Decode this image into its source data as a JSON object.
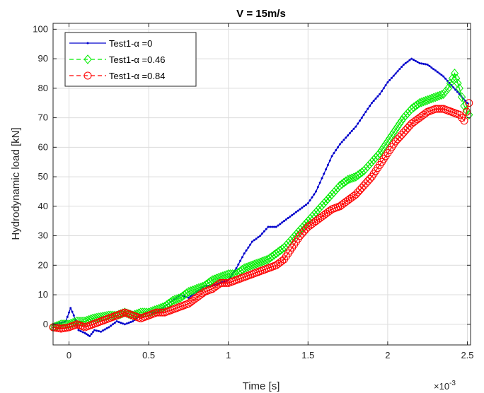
{
  "chart_data": {
    "type": "line",
    "title": "V = 15m/s",
    "xlabel": "Time [s]",
    "ylabel": "Hydrodynamic load [kN]",
    "x_exponent_label": "×10",
    "x_exponent_power": "-3",
    "xlim": [
      -0.1,
      2.52
    ],
    "ylim": [
      -7,
      102
    ],
    "xticks": [
      0,
      0.5,
      1,
      1.5,
      2,
      2.5
    ],
    "xtick_labels": [
      "0",
      "0.5",
      "1",
      "1.5",
      "2",
      "2.5"
    ],
    "yticks": [
      0,
      10,
      20,
      30,
      40,
      50,
      60,
      70,
      80,
      90,
      100
    ],
    "ytick_labels": [
      "0",
      "10",
      "20",
      "30",
      "40",
      "50",
      "60",
      "70",
      "80",
      "90",
      "100"
    ],
    "grid": true,
    "legend_position": "top-left",
    "series": [
      {
        "name": "Test1-α =0",
        "color": "#0000cc",
        "marker": "dot",
        "points": [
          [
            -0.1,
            0
          ],
          [
            -0.05,
            0.5
          ],
          [
            -0.02,
            1
          ],
          [
            0.01,
            5.5
          ],
          [
            0.03,
            3
          ],
          [
            0.06,
            -2
          ],
          [
            0.1,
            -3
          ],
          [
            0.13,
            -4
          ],
          [
            0.16,
            -2
          ],
          [
            0.2,
            -2.5
          ],
          [
            0.25,
            -1
          ],
          [
            0.3,
            1
          ],
          [
            0.35,
            0
          ],
          [
            0.4,
            1
          ],
          [
            0.45,
            3
          ],
          [
            0.5,
            4
          ],
          [
            0.55,
            4
          ],
          [
            0.6,
            6
          ],
          [
            0.65,
            8
          ],
          [
            0.7,
            10
          ],
          [
            0.75,
            9
          ],
          [
            0.8,
            11
          ],
          [
            0.85,
            13
          ],
          [
            0.9,
            13
          ],
          [
            0.95,
            14
          ],
          [
            1.0,
            15
          ],
          [
            1.05,
            19
          ],
          [
            1.1,
            24
          ],
          [
            1.15,
            28
          ],
          [
            1.2,
            30
          ],
          [
            1.25,
            33
          ],
          [
            1.3,
            33
          ],
          [
            1.35,
            35
          ],
          [
            1.4,
            37
          ],
          [
            1.45,
            39
          ],
          [
            1.5,
            41
          ],
          [
            1.55,
            45
          ],
          [
            1.6,
            51
          ],
          [
            1.65,
            57
          ],
          [
            1.7,
            61
          ],
          [
            1.75,
            64
          ],
          [
            1.8,
            67
          ],
          [
            1.85,
            71
          ],
          [
            1.9,
            75
          ],
          [
            1.95,
            78
          ],
          [
            2.0,
            82
          ],
          [
            2.05,
            85
          ],
          [
            2.1,
            88
          ],
          [
            2.15,
            90
          ],
          [
            2.2,
            88.5
          ],
          [
            2.25,
            88
          ],
          [
            2.3,
            86
          ],
          [
            2.35,
            84
          ],
          [
            2.4,
            81
          ],
          [
            2.45,
            78
          ],
          [
            2.5,
            75
          ]
        ]
      },
      {
        "name": "Test1-α =0.46",
        "color": "#00ee00",
        "marker": "diamond",
        "points": [
          [
            -0.1,
            -1
          ],
          [
            -0.05,
            0
          ],
          [
            0.0,
            0
          ],
          [
            0.05,
            1
          ],
          [
            0.1,
            1
          ],
          [
            0.15,
            2
          ],
          [
            0.2,
            2.5
          ],
          [
            0.25,
            3
          ],
          [
            0.3,
            3
          ],
          [
            0.35,
            4
          ],
          [
            0.4,
            3
          ],
          [
            0.45,
            4
          ],
          [
            0.5,
            4
          ],
          [
            0.55,
            5
          ],
          [
            0.6,
            6
          ],
          [
            0.65,
            8
          ],
          [
            0.7,
            9
          ],
          [
            0.75,
            11
          ],
          [
            0.8,
            12
          ],
          [
            0.85,
            13
          ],
          [
            0.9,
            15
          ],
          [
            0.95,
            16
          ],
          [
            1.0,
            17
          ],
          [
            1.05,
            17
          ],
          [
            1.1,
            19
          ],
          [
            1.15,
            20
          ],
          [
            1.2,
            21
          ],
          [
            1.25,
            22
          ],
          [
            1.3,
            24
          ],
          [
            1.35,
            26
          ],
          [
            1.4,
            29
          ],
          [
            1.45,
            32
          ],
          [
            1.5,
            35
          ],
          [
            1.55,
            38
          ],
          [
            1.6,
            41
          ],
          [
            1.65,
            44
          ],
          [
            1.7,
            47
          ],
          [
            1.75,
            49
          ],
          [
            1.8,
            50
          ],
          [
            1.85,
            52
          ],
          [
            1.9,
            55
          ],
          [
            1.95,
            58
          ],
          [
            2.0,
            62
          ],
          [
            2.05,
            66
          ],
          [
            2.1,
            70
          ],
          [
            2.15,
            73
          ],
          [
            2.2,
            75
          ],
          [
            2.25,
            76
          ],
          [
            2.3,
            77
          ],
          [
            2.35,
            78
          ],
          [
            2.38,
            80
          ],
          [
            2.42,
            85
          ],
          [
            2.45,
            80
          ],
          [
            2.48,
            74
          ],
          [
            2.51,
            71
          ]
        ]
      },
      {
        "name": "Test1-α =0.84",
        "color": "#ff0000",
        "marker": "circle",
        "points": [
          [
            -0.1,
            -1
          ],
          [
            -0.05,
            -1.5
          ],
          [
            0.0,
            -1
          ],
          [
            0.05,
            0
          ],
          [
            0.1,
            -1
          ],
          [
            0.15,
            0
          ],
          [
            0.2,
            1
          ],
          [
            0.25,
            2
          ],
          [
            0.3,
            3
          ],
          [
            0.35,
            4
          ],
          [
            0.4,
            3
          ],
          [
            0.45,
            2
          ],
          [
            0.5,
            3
          ],
          [
            0.55,
            4
          ],
          [
            0.6,
            4
          ],
          [
            0.65,
            5
          ],
          [
            0.7,
            6
          ],
          [
            0.75,
            7
          ],
          [
            0.8,
            9
          ],
          [
            0.85,
            11
          ],
          [
            0.9,
            12
          ],
          [
            0.95,
            14
          ],
          [
            1.0,
            14
          ],
          [
            1.05,
            15
          ],
          [
            1.1,
            16
          ],
          [
            1.15,
            17
          ],
          [
            1.2,
            18
          ],
          [
            1.25,
            19
          ],
          [
            1.3,
            20
          ],
          [
            1.35,
            22
          ],
          [
            1.4,
            26
          ],
          [
            1.45,
            30
          ],
          [
            1.5,
            33
          ],
          [
            1.55,
            35
          ],
          [
            1.6,
            37
          ],
          [
            1.65,
            39
          ],
          [
            1.7,
            40
          ],
          [
            1.75,
            42
          ],
          [
            1.8,
            44
          ],
          [
            1.85,
            47
          ],
          [
            1.9,
            50
          ],
          [
            1.95,
            54
          ],
          [
            2.0,
            58
          ],
          [
            2.05,
            62
          ],
          [
            2.1,
            65
          ],
          [
            2.15,
            68
          ],
          [
            2.2,
            70
          ],
          [
            2.25,
            72
          ],
          [
            2.3,
            73
          ],
          [
            2.35,
            73
          ],
          [
            2.4,
            72
          ],
          [
            2.45,
            71
          ],
          [
            2.48,
            69
          ],
          [
            2.51,
            75
          ]
        ]
      }
    ]
  }
}
